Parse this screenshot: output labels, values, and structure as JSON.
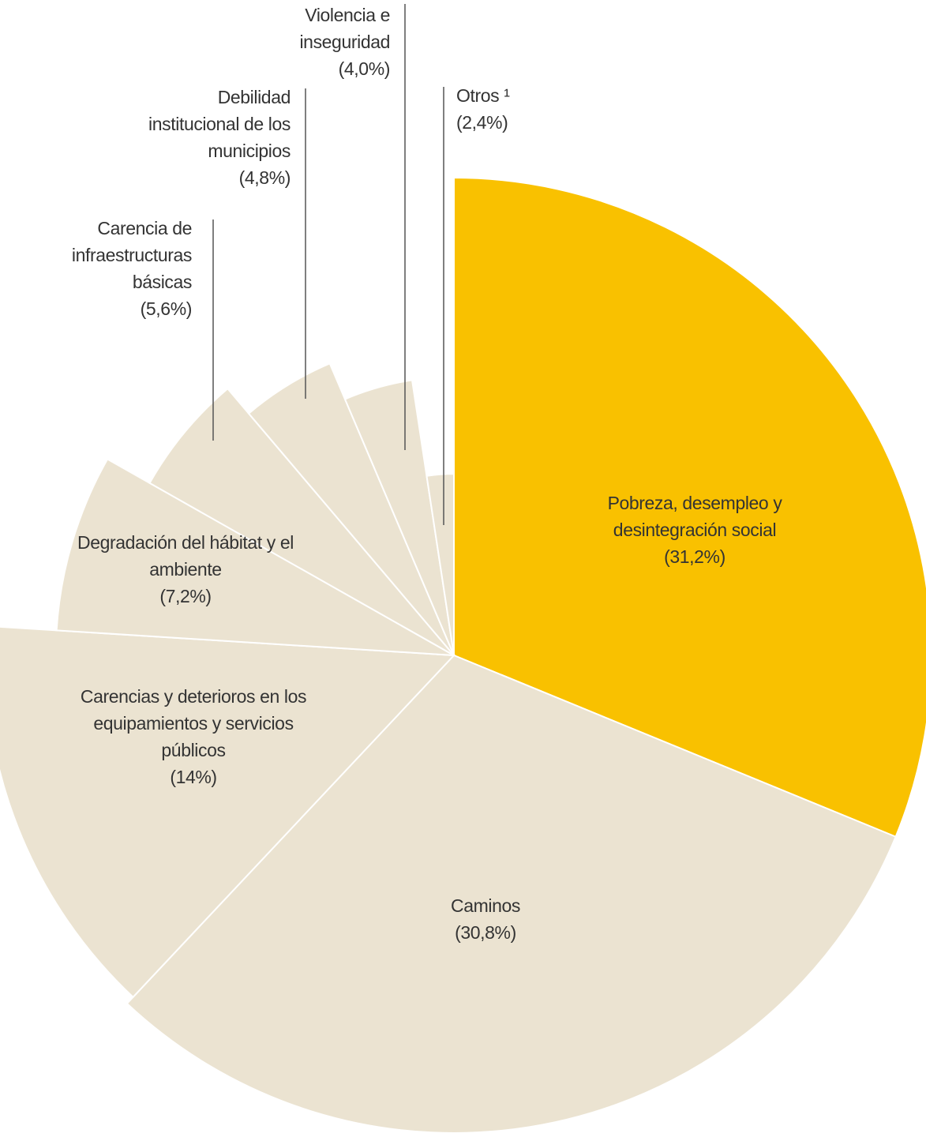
{
  "chart_data": {
    "type": "pie",
    "categories": [
      "Pobreza, desempleo y desintegración social",
      "Caminos",
      "Carencias y deterioros en los equipamientos y servicios públicos",
      "Degradación del hábitat y el ambiente",
      "Carencia de infraestructuras básicas",
      "Debilidad institucional de los municipios",
      "Violencia e inseguridad",
      "Otros ¹"
    ],
    "values": [
      31.2,
      30.8,
      14,
      7.2,
      5.6,
      4.8,
      4.0,
      2.4
    ],
    "value_labels": [
      "(31,2%)",
      "(30,8%)",
      "(14%)",
      "(7,2%)",
      "(5,6%)",
      "(4,8%)",
      "(4,0%)",
      "(2,4%)"
    ],
    "colors": [
      "#f9c100",
      "#ebe3d1",
      "#ebe3d1",
      "#ebe3d1",
      "#ebe3d1",
      "#ebe3d1",
      "#ebe3d1",
      "#ebe3d1"
    ]
  }
}
